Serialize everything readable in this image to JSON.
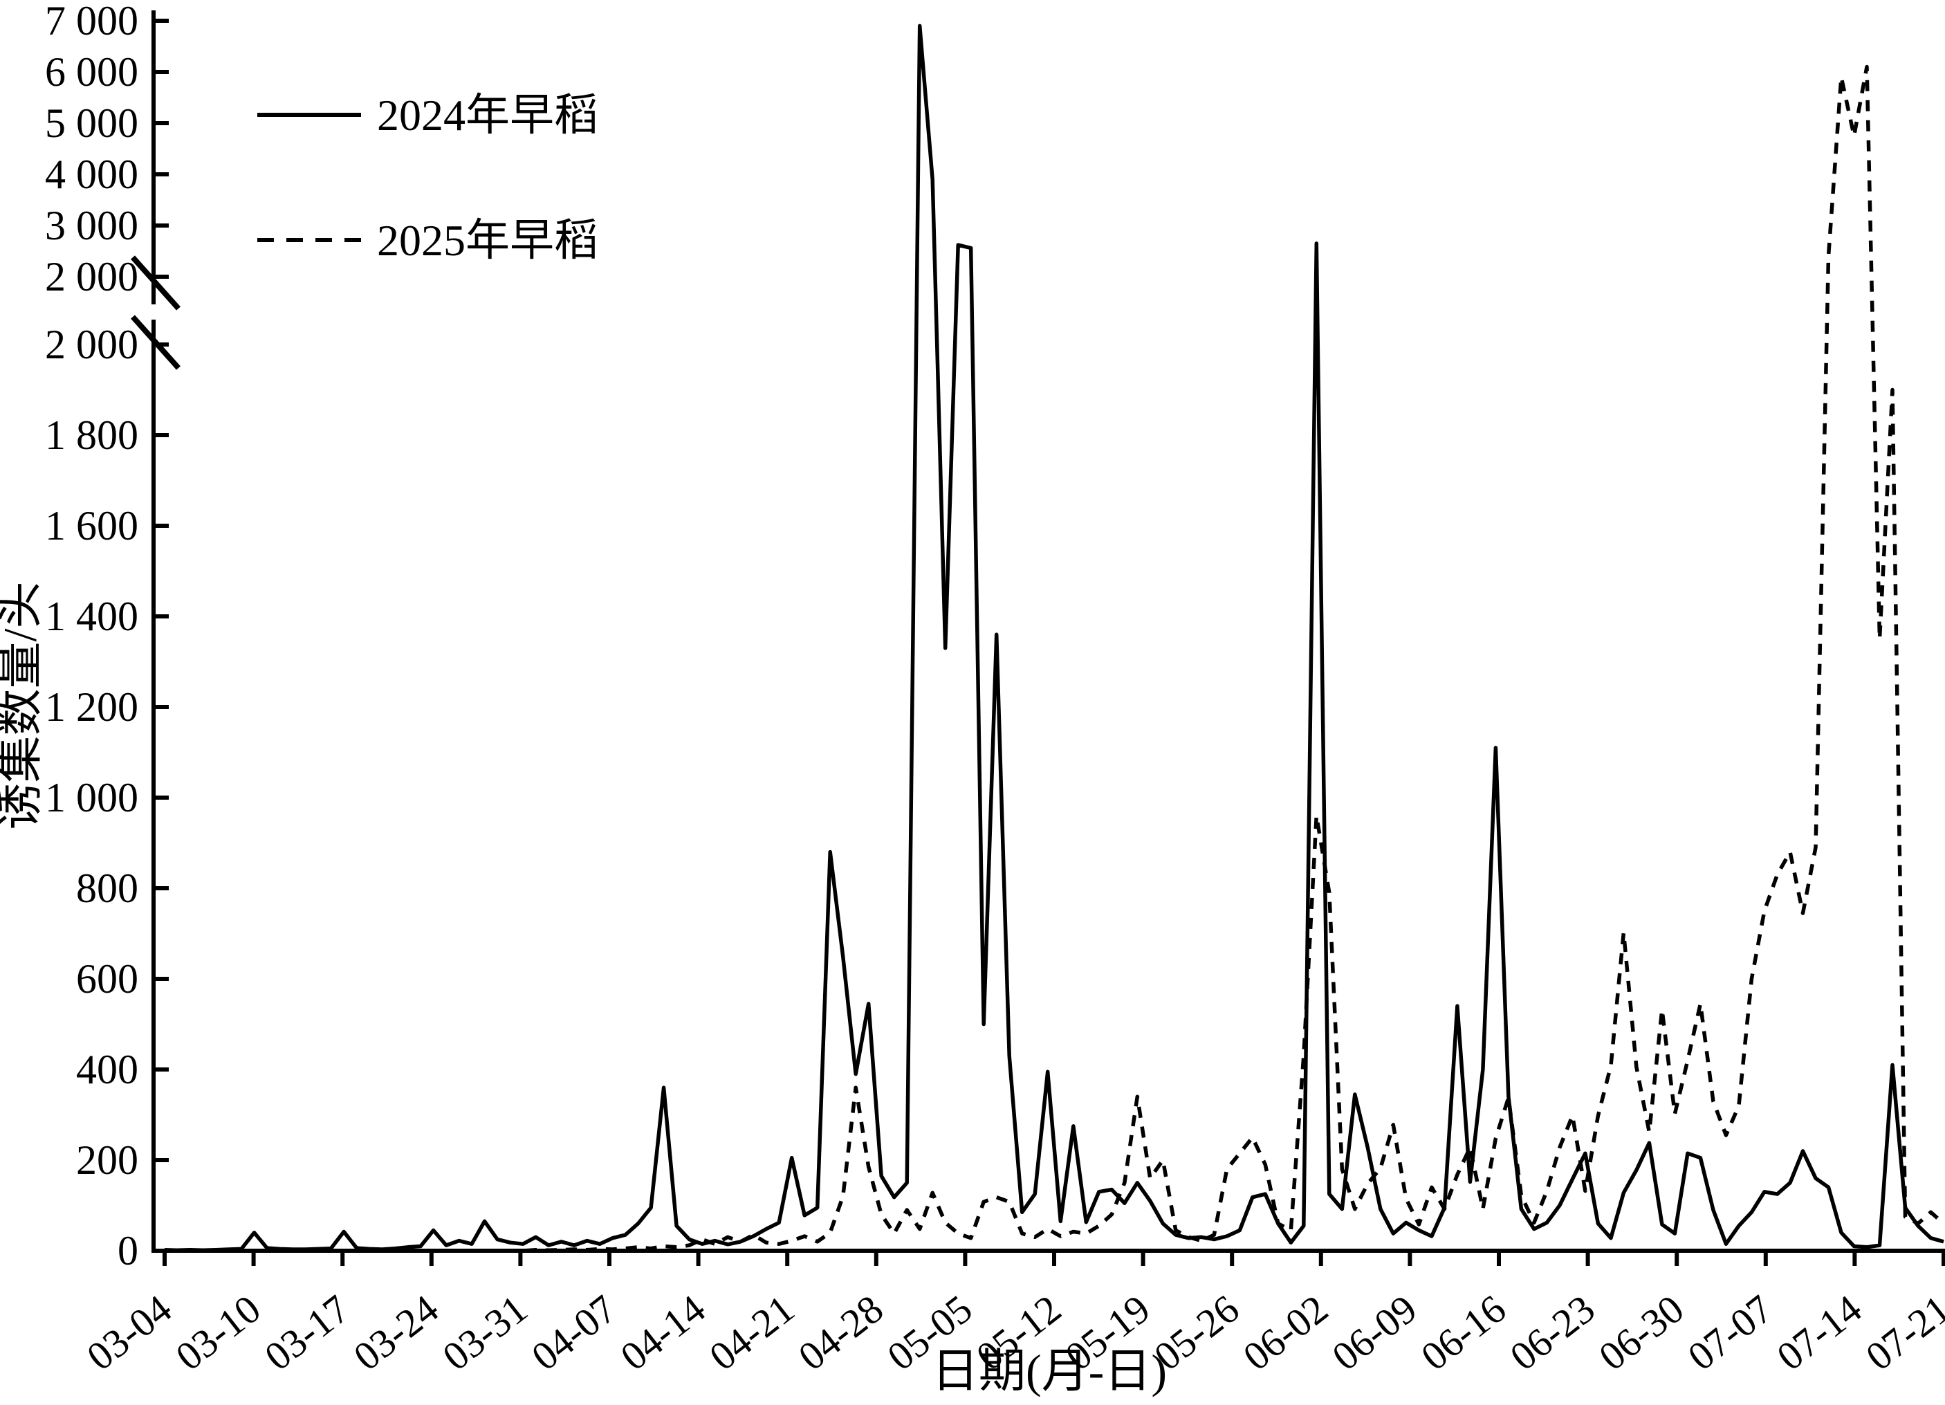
{
  "figure": {
    "y_axis_title": "诱集数量/头",
    "x_axis_title": "日期(月-日)",
    "background_color": "#ffffff",
    "line_color": "#000000"
  },
  "legend": {
    "position": "top-left",
    "items": [
      {
        "label": "2024年早稻",
        "line_style": "solid"
      },
      {
        "label": "2025年早稻",
        "line_style": "dashed"
      }
    ]
  },
  "chart_data": {
    "type": "line",
    "title": "",
    "xlabel": "日期(月-日)",
    "ylabel": "诱集数量/头",
    "grid": false,
    "legend_position": "top-left",
    "x_start_date": "03-04",
    "x_end_date": "07-21",
    "x_tick_labels": [
      "03-04",
      "03-10",
      "03-17",
      "03-24",
      "03-31",
      "04-07",
      "04-14",
      "04-21",
      "04-28",
      "05-05",
      "05-12",
      "05-19",
      "05-26",
      "06-02",
      "06-09",
      "06-16",
      "06-23",
      "06-30",
      "07-07",
      "07-14",
      "07-21"
    ],
    "y_axis_break": {
      "lower_range": [
        0,
        2000
      ],
      "upper_range": [
        2000,
        7000
      ]
    },
    "y_ticks_lower": {
      "values": [
        0,
        200,
        400,
        600,
        800,
        1000,
        1200,
        1400,
        1600,
        1800,
        2000
      ],
      "labels": [
        "0",
        "200",
        "400",
        "600",
        "800",
        "1 000",
        "1 200",
        "1 400",
        "1 600",
        "1 800",
        "2 000"
      ]
    },
    "y_ticks_upper": {
      "values": [
        2000,
        3000,
        4000,
        5000,
        6000,
        7000
      ],
      "labels": [
        "2 000",
        "3 000",
        "4 000",
        "5 000",
        "6 000",
        "7 000"
      ]
    },
    "series": [
      {
        "name": "2024年早稻",
        "line_style": "solid",
        "values": [
          2,
          1,
          2,
          1,
          2,
          3,
          4,
          40,
          6,
          4,
          3,
          3,
          4,
          5,
          42,
          6,
          4,
          3,
          5,
          8,
          10,
          45,
          12,
          22,
          15,
          65,
          25,
          18,
          15,
          30,
          12,
          20,
          12,
          22,
          15,
          28,
          35,
          60,
          95,
          360,
          55,
          25,
          15,
          22,
          14,
          20,
          32,
          48,
          62,
          205,
          78,
          95,
          880,
          650,
          390,
          545,
          165,
          118,
          150,
          6900,
          3900,
          1330,
          2620,
          2560,
          500,
          1360,
          430,
          85,
          125,
          395,
          65,
          275,
          63,
          130,
          135,
          105,
          150,
          110,
          60,
          35,
          28,
          30,
          25,
          32,
          45,
          118,
          125,
          60,
          18,
          55,
          2650,
          125,
          92,
          345,
          228,
          92,
          38,
          62,
          45,
          32,
          95,
          540,
          152,
          400,
          1110,
          340,
          92,
          48,
          62,
          100,
          158,
          215,
          60,
          28,
          128,
          178,
          238,
          58,
          38,
          215,
          205,
          90,
          15,
          55,
          85,
          130,
          125,
          150,
          220,
          160,
          140,
          40,
          10,
          8,
          12,
          410,
          95,
          55,
          28,
          20
        ]
      },
      {
        "name": "2025年早稻",
        "line_style": "dashed",
        "values": [
          0,
          0,
          0,
          0,
          0,
          0,
          0,
          0,
          0,
          0,
          0,
          0,
          0,
          0,
          0,
          0,
          0,
          0,
          0,
          0,
          0,
          0,
          0,
          0,
          0,
          0,
          0,
          0,
          0,
          2,
          1,
          2,
          3,
          2,
          4,
          3,
          5,
          8,
          5,
          10,
          8,
          12,
          25,
          15,
          30,
          20,
          35,
          18,
          15,
          22,
          32,
          20,
          40,
          120,
          360,
          185,
          80,
          38,
          90,
          48,
          128,
          62,
          38,
          28,
          108,
          118,
          108,
          38,
          30,
          48,
          32,
          42,
          38,
          55,
          80,
          150,
          340,
          160,
          200,
          45,
          30,
          22,
          35,
          180,
          215,
          250,
          190,
          60,
          45,
          430,
          960,
          790,
          180,
          92,
          148,
          182,
          278,
          115,
          58,
          140,
          92,
          168,
          228,
          92,
          248,
          338,
          122,
          62,
          132,
          228,
          298,
          132,
          298,
          408,
          702,
          405,
          262,
          532,
          302,
          420,
          545,
          330,
          255,
          320,
          600,
          750,
          830,
          880,
          745,
          890,
          2400,
          5900,
          4750,
          6100,
          1350,
          1900,
          75,
          60,
          85,
          60
        ]
      }
    ]
  }
}
